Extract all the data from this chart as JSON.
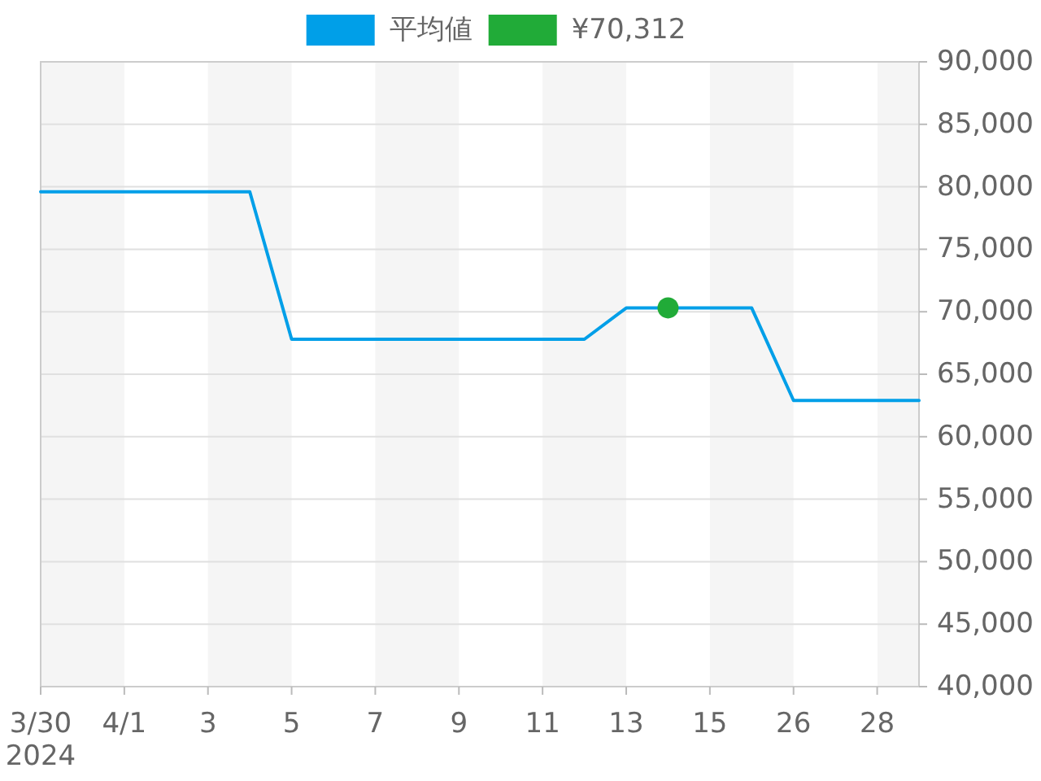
{
  "chart_data": {
    "type": "line",
    "categories": [
      "3/30\n2024",
      null,
      "4/1",
      null,
      "3",
      null,
      "5",
      null,
      "7",
      null,
      "9",
      null,
      "11",
      null,
      "13",
      null,
      "15",
      null,
      "26",
      null,
      "28",
      null
    ],
    "series": [
      {
        "name": "平均値",
        "color": "#009fe8",
        "values": [
          79600,
          79600,
          79600,
          79600,
          79600,
          79600,
          67800,
          67800,
          67800,
          67800,
          67800,
          67800,
          67800,
          67800,
          70300,
          70300,
          70300,
          70300,
          62900,
          62900,
          62900,
          62900
        ]
      },
      {
        "name": "¥70,312",
        "type": "scatter",
        "color": "#21ab38",
        "marker": "circle",
        "values": [
          null,
          null,
          null,
          null,
          null,
          null,
          null,
          null,
          null,
          null,
          null,
          null,
          null,
          null,
          null,
          70312,
          null,
          null,
          null,
          null,
          null,
          null
        ]
      }
    ],
    "ylim": [
      40000,
      90000
    ],
    "yticks": [
      {
        "value": 40000,
        "label": "40,000"
      },
      {
        "value": 45000,
        "label": "45,000"
      },
      {
        "value": 50000,
        "label": "50,000"
      },
      {
        "value": 55000,
        "label": "55,000"
      },
      {
        "value": 60000,
        "label": "60,000"
      },
      {
        "value": 65000,
        "label": "65,000"
      },
      {
        "value": 70000,
        "label": "70,000"
      },
      {
        "value": 75000,
        "label": "75,000"
      },
      {
        "value": 80000,
        "label": "80,000"
      },
      {
        "value": 85000,
        "label": "85,000"
      },
      {
        "value": 90000,
        "label": "90,000"
      }
    ],
    "grid": "y",
    "legend": "top",
    "bands": [
      {
        "axis": "x",
        "from": "3/30\n2024",
        "to": "4/1",
        "color": "#f5f5f5"
      },
      {
        "axis": "x",
        "from": "3",
        "to": "5",
        "color": "#f5f5f5"
      },
      {
        "axis": "x",
        "from": "7",
        "to": "9",
        "color": "#f5f5f5"
      },
      {
        "axis": "x",
        "from": "11",
        "to": "13",
        "color": "#f5f5f5"
      },
      {
        "axis": "x",
        "from": "15",
        "to": "26",
        "color": "#f5f5f5"
      }
    ]
  }
}
